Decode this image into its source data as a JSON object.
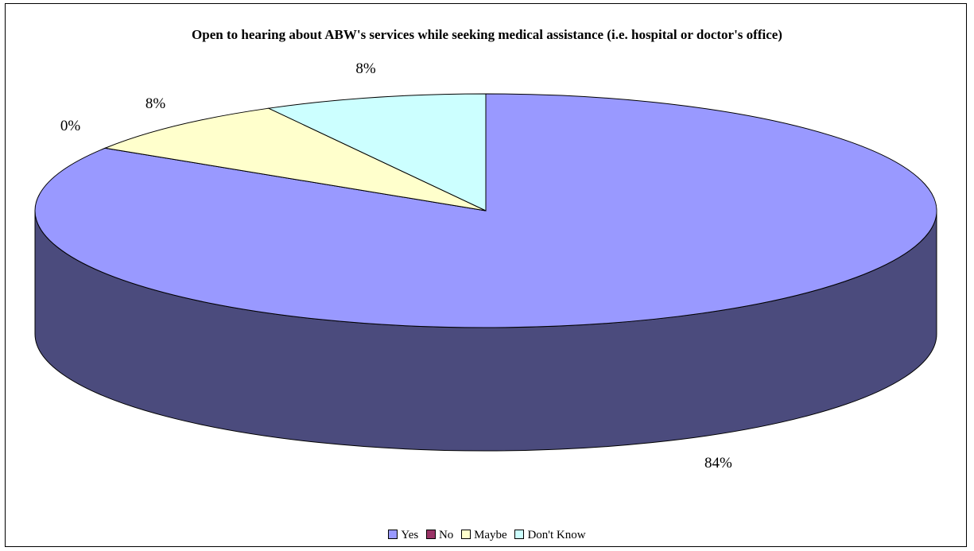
{
  "chart_data": {
    "type": "pie",
    "title": "Open to hearing about ABW's services while seeking medical assistance (i.e. hospital or doctor's office)",
    "slices": [
      {
        "name": "Yes",
        "value": 84,
        "label": "84%",
        "color": "#9999ff",
        "side_color": "#4b4b7d"
      },
      {
        "name": "No",
        "value": 0,
        "label": "0%",
        "color": "#993366",
        "side_color": "#4d1a33"
      },
      {
        "name": "Maybe",
        "value": 8,
        "label": "8%",
        "color": "#ffffcc",
        "side_color": "#80806a"
      },
      {
        "name": "Don't Know",
        "value": 8,
        "label": "8%",
        "color": "#ccffff",
        "side_color": "#668080"
      }
    ],
    "legend_position": "bottom",
    "three_d": true
  }
}
